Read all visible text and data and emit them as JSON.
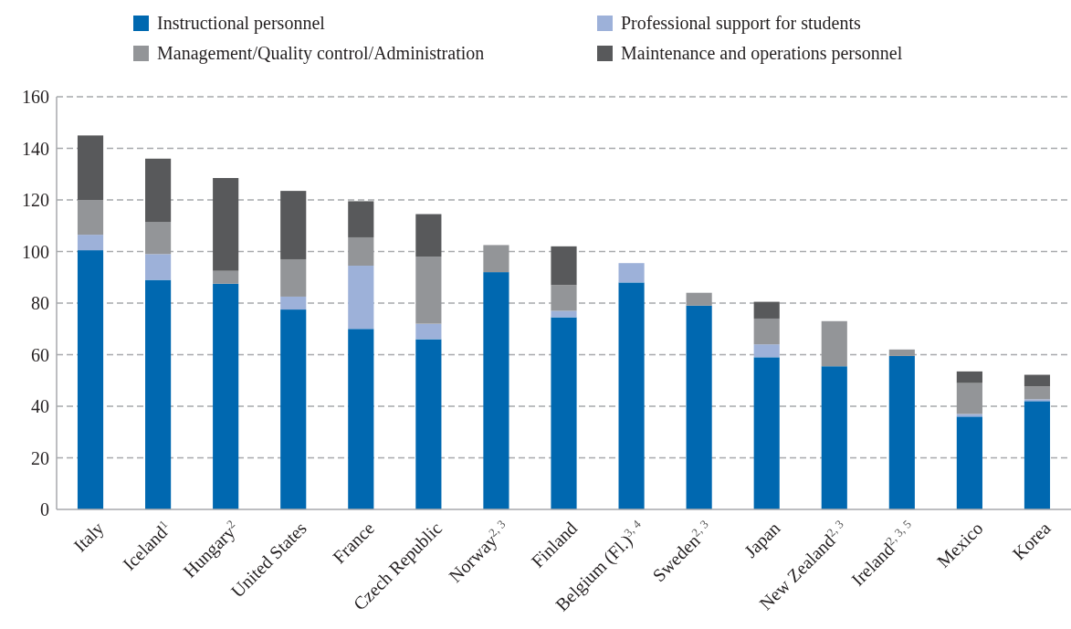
{
  "chart_data": {
    "type": "bar",
    "stacked": true,
    "categories": [
      "Italy",
      "Iceland$^{1}$",
      "Hungary$^{2}$",
      "United States",
      "France",
      "Czech Republic",
      "Norway$^{2, 3}$",
      "Finland",
      "Belgium (Fl.)$^{3, 4}$",
      "Sweden$^{2, 3}$",
      "Japan",
      "New Zealand$^{2, 3}$",
      "Ireland$^{2, 3, 5}$",
      "Mexico",
      "Korea"
    ],
    "series": [
      {
        "name": "Instructional personnel",
        "color": "#0068b0",
        "values": [
          100.5,
          89,
          87.5,
          77.5,
          70,
          66,
          92,
          74.5,
          88,
          79,
          59,
          55.5,
          59.5,
          36,
          42
        ]
      },
      {
        "name": "Professional support for students",
        "color": "#9db1d9",
        "values": [
          6,
          10,
          0,
          5,
          24.5,
          6,
          0,
          2.5,
          7.5,
          0,
          5,
          0,
          0,
          1,
          0.7
        ]
      },
      {
        "name": "Management/Quality control/Administration",
        "color": "#939598",
        "values": [
          13.5,
          12.5,
          5,
          14.5,
          11,
          26,
          10.5,
          10,
          0,
          5,
          10,
          17.5,
          2.5,
          12,
          5
        ]
      },
      {
        "name": "Maintenance and operations personnel",
        "color": "#58595b",
        "values": [
          25,
          24.5,
          36,
          26.5,
          14,
          16.5,
          0,
          15,
          0,
          0,
          6.5,
          0,
          0,
          4.5,
          4.5
        ]
      }
    ],
    "ylim": [
      0,
      160
    ],
    "yticks": [
      0,
      20,
      40,
      60,
      80,
      100,
      120,
      140,
      160
    ],
    "grid": "y",
    "legend": "top"
  }
}
